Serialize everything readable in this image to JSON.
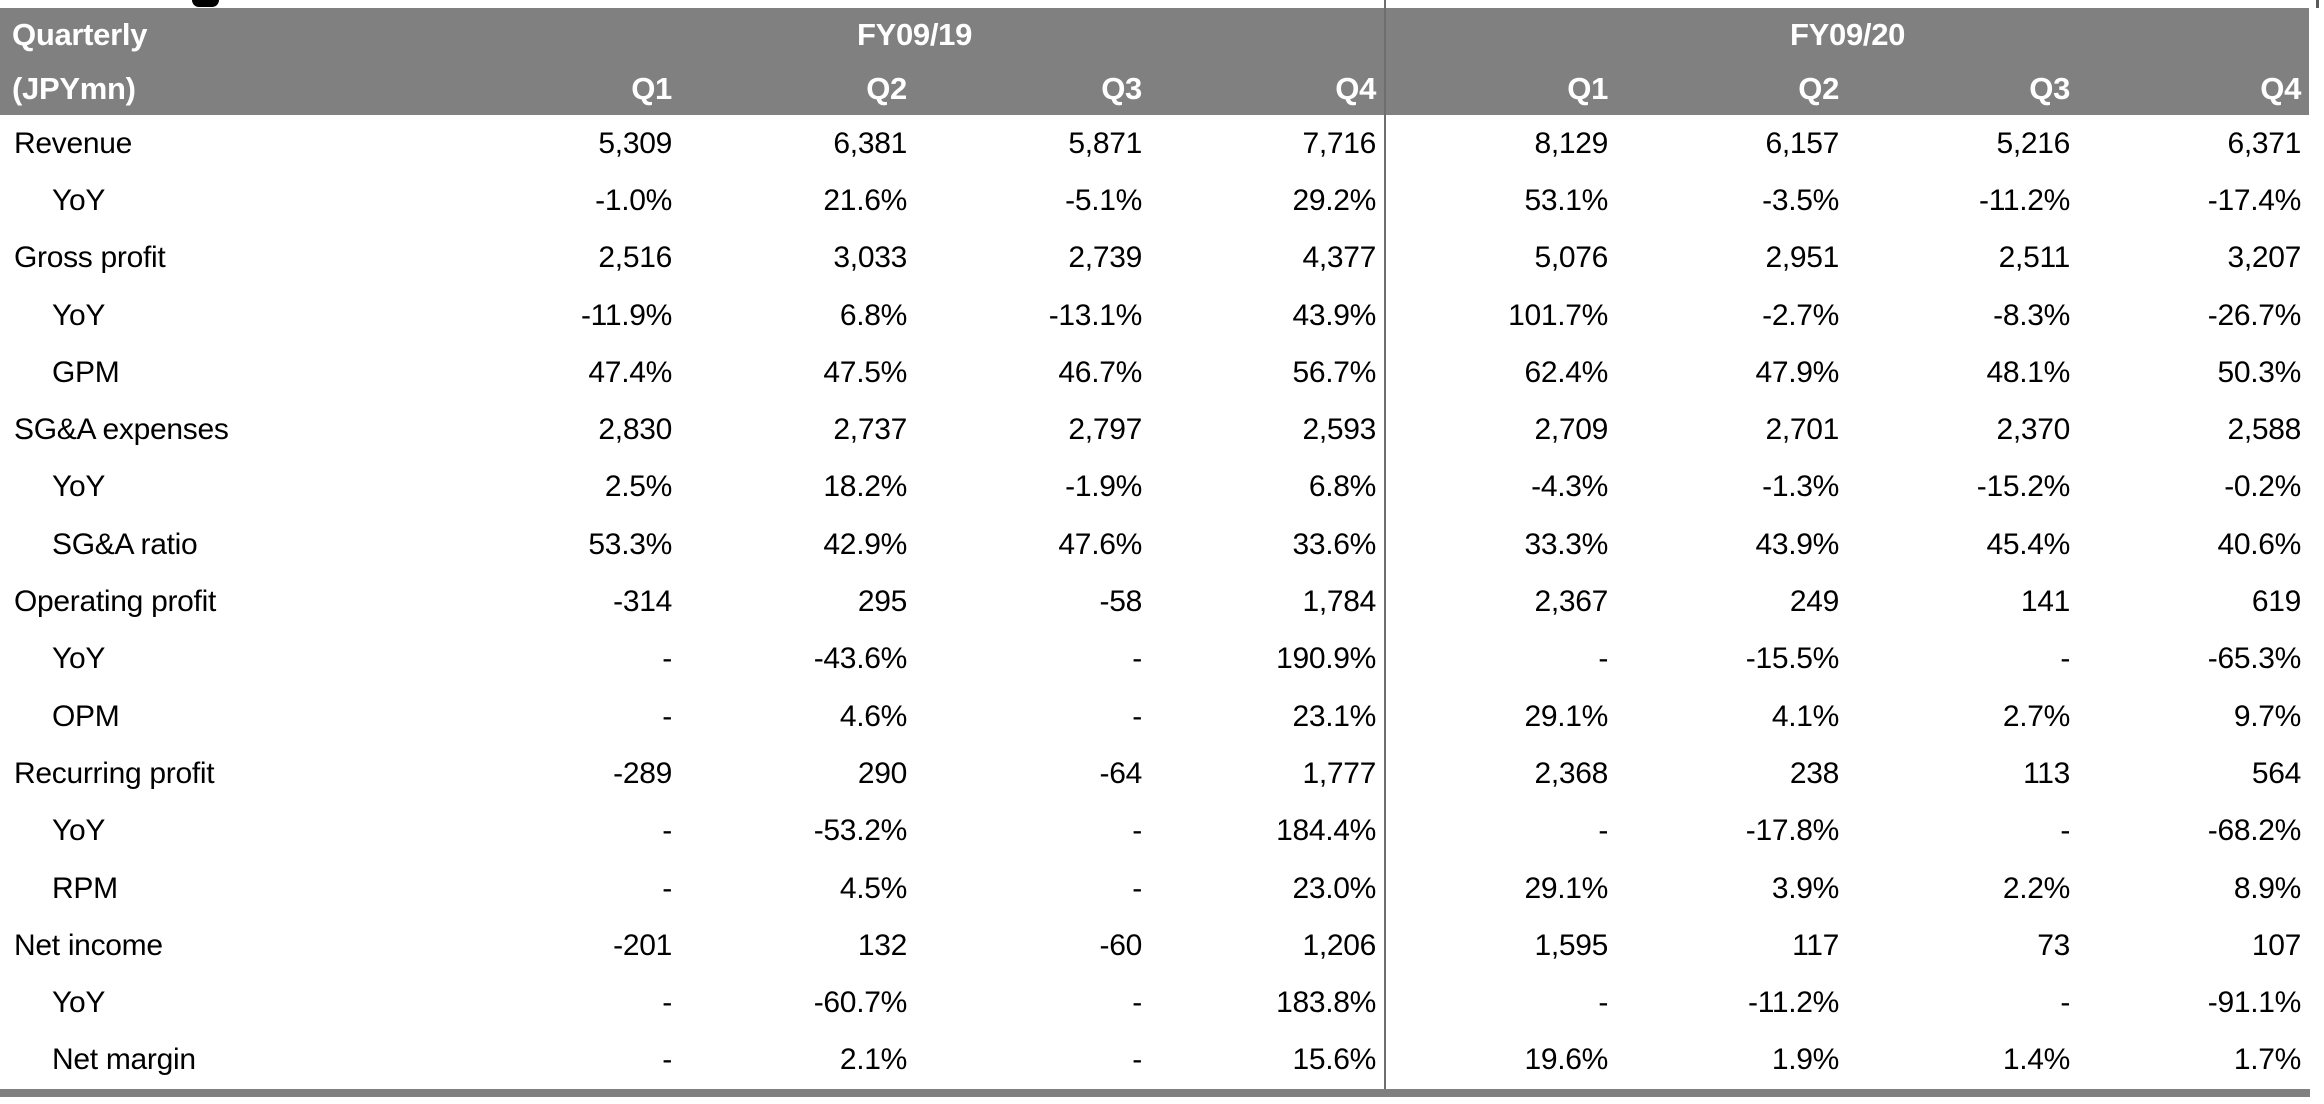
{
  "table": {
    "title_line1": "Quarterly",
    "title_line2": "(JPYmn)",
    "col_groups": [
      {
        "label": "FY09/19"
      },
      {
        "label": "FY09/20"
      }
    ],
    "quarters": [
      "Q1",
      "Q2",
      "Q3",
      "Q4",
      "Q1",
      "Q2",
      "Q3",
      "Q4"
    ],
    "rows": [
      {
        "label": "Revenue",
        "indent": false,
        "values": [
          "5,309",
          "6,381",
          "5,871",
          "7,716",
          "8,129",
          "6,157",
          "5,216",
          "6,371"
        ]
      },
      {
        "label": "YoY",
        "indent": true,
        "values": [
          "-1.0%",
          "21.6%",
          "-5.1%",
          "29.2%",
          "53.1%",
          "-3.5%",
          "-11.2%",
          "-17.4%"
        ]
      },
      {
        "label": "Gross profit",
        "indent": false,
        "values": [
          "2,516",
          "3,033",
          "2,739",
          "4,377",
          "5,076",
          "2,951",
          "2,511",
          "3,207"
        ]
      },
      {
        "label": "YoY",
        "indent": true,
        "values": [
          "-11.9%",
          "6.8%",
          "-13.1%",
          "43.9%",
          "101.7%",
          "-2.7%",
          "-8.3%",
          "-26.7%"
        ]
      },
      {
        "label": "GPM",
        "indent": true,
        "values": [
          "47.4%",
          "47.5%",
          "46.7%",
          "56.7%",
          "62.4%",
          "47.9%",
          "48.1%",
          "50.3%"
        ]
      },
      {
        "label": "SG&A expenses",
        "indent": false,
        "values": [
          "2,830",
          "2,737",
          "2,797",
          "2,593",
          "2,709",
          "2,701",
          "2,370",
          "2,588"
        ]
      },
      {
        "label": "YoY",
        "indent": true,
        "values": [
          "2.5%",
          "18.2%",
          "-1.9%",
          "6.8%",
          "-4.3%",
          "-1.3%",
          "-15.2%",
          "-0.2%"
        ]
      },
      {
        "label": "SG&A ratio",
        "indent": true,
        "values": [
          "53.3%",
          "42.9%",
          "47.6%",
          "33.6%",
          "33.3%",
          "43.9%",
          "45.4%",
          "40.6%"
        ]
      },
      {
        "label": "Operating profit",
        "indent": false,
        "values": [
          "-314",
          "295",
          "-58",
          "1,784",
          "2,367",
          "249",
          "141",
          "619"
        ]
      },
      {
        "label": "YoY",
        "indent": true,
        "values": [
          "-",
          "-43.6%",
          "-",
          "190.9%",
          "-",
          "-15.5%",
          "-",
          "-65.3%"
        ]
      },
      {
        "label": "OPM",
        "indent": true,
        "values": [
          "-",
          "4.6%",
          "-",
          "23.1%",
          "29.1%",
          "4.1%",
          "2.7%",
          "9.7%"
        ]
      },
      {
        "label": "Recurring profit",
        "indent": false,
        "values": [
          "-289",
          "290",
          "-64",
          "1,777",
          "2,368",
          "238",
          "113",
          "564"
        ]
      },
      {
        "label": "YoY",
        "indent": true,
        "values": [
          "-",
          "-53.2%",
          "-",
          "184.4%",
          "-",
          "-17.8%",
          "-",
          "-68.2%"
        ]
      },
      {
        "label": "RPM",
        "indent": true,
        "values": [
          "-",
          "4.5%",
          "-",
          "23.0%",
          "29.1%",
          "3.9%",
          "2.2%",
          "8.9%"
        ]
      },
      {
        "label": "Net income",
        "indent": false,
        "values": [
          "-201",
          "132",
          "-60",
          "1,206",
          "1,595",
          "117",
          "73",
          "107"
        ]
      },
      {
        "label": "YoY",
        "indent": true,
        "values": [
          "-",
          "-60.7%",
          "-",
          "183.8%",
          "-",
          "-11.2%",
          "-",
          "-91.1%"
        ]
      },
      {
        "label": "Net margin",
        "indent": true,
        "values": [
          "-",
          "2.1%",
          "-",
          "15.6%",
          "19.6%",
          "1.9%",
          "1.4%",
          "1.7%"
        ]
      }
    ]
  },
  "colors": {
    "header_background": "#808080",
    "header_text": "#ffffff",
    "body_text": "#000000",
    "divider_line": "#6e6e6e",
    "bottom_rule": "#808080",
    "page_background": "#ffffff"
  }
}
